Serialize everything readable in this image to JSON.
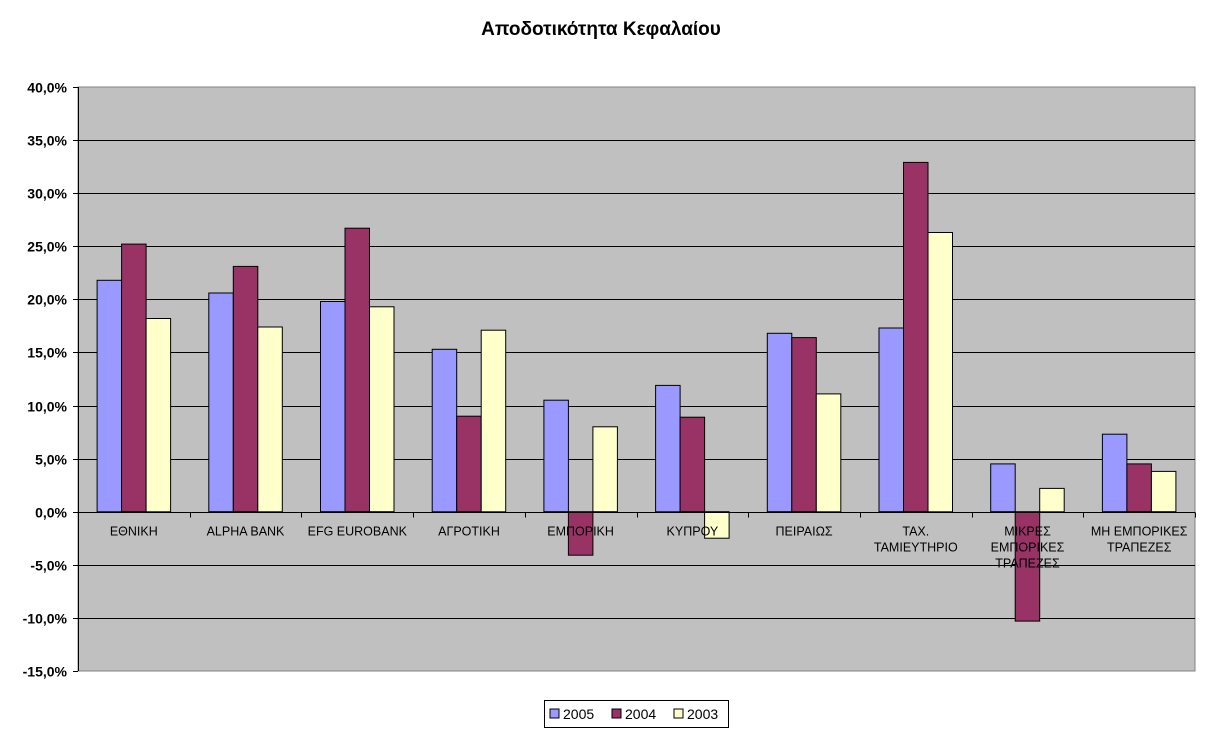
{
  "chart_data": {
    "type": "bar",
    "title": "Αποδοτικότητα Κεφαλαίου",
    "xlabel": "",
    "ylabel": "",
    "ylim": [
      -0.15,
      0.4
    ],
    "y_tick_step": 0.05,
    "y_tick_labels": [
      "40,0%",
      "35,0%",
      "30,0%",
      "25,0%",
      "20,0%",
      "15,0%",
      "10,0%",
      "5,0%",
      "0,0%",
      "-5,0%",
      "-10,0%",
      "-15,0%"
    ],
    "y_tick_values": [
      0.4,
      0.35,
      0.3,
      0.25,
      0.2,
      0.15,
      0.1,
      0.05,
      0.0,
      -0.05,
      -0.1,
      -0.15
    ],
    "categories": [
      [
        "ΕΘΝΙΚΗ"
      ],
      [
        "ALPHA BANK"
      ],
      [
        "EFG EUROBANK"
      ],
      [
        "ΑΓΡΟΤΙΚΗ"
      ],
      [
        "ΕΜΠΟΡΙΚΗ"
      ],
      [
        "ΚΥΠΡΟΥ"
      ],
      [
        "ΠΕΙΡΑΙΩΣ"
      ],
      [
        "ΤΑΧ.",
        "ΤΑΜΙΕΥΤΗΡΙΟ"
      ],
      [
        "ΜΙΚΡΕΣ",
        "ΕΜΠΟΡΙΚΕΣ",
        "ΤΡΑΠΕΖΕΣ"
      ],
      [
        "ΜΗ ΕΜΠΟΡΙΚΕΣ",
        "ΤΡΑΠΕΖΕΣ"
      ]
    ],
    "series": [
      {
        "name": "2005",
        "color": "#9999ff",
        "values": [
          0.218,
          0.206,
          0.198,
          0.153,
          0.105,
          0.119,
          0.168,
          0.173,
          0.045,
          0.073
        ]
      },
      {
        "name": "2004",
        "color": "#993366",
        "values": [
          0.252,
          0.231,
          0.267,
          0.09,
          -0.041,
          0.089,
          0.164,
          0.329,
          -0.103,
          0.045
        ]
      },
      {
        "name": "2003",
        "color": "#ffffcc",
        "values": [
          0.182,
          0.174,
          0.193,
          0.171,
          0.08,
          -0.025,
          0.111,
          0.263,
          0.022,
          0.038
        ]
      }
    ],
    "plot_background": "#c0c0c0",
    "grid": true,
    "legend_position": "bottom-center"
  }
}
